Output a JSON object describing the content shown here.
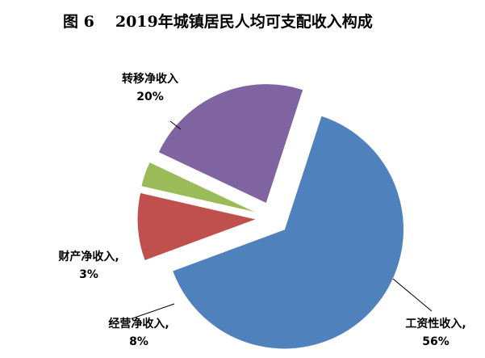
{
  "chart_data": {
    "type": "pie",
    "title_prefix": "图 6",
    "title": "2019年城镇居民人均可支配收入构成",
    "slices": [
      {
        "label": "工资性收入,",
        "pct_label": "56%",
        "value": 56,
        "color": "#4f81bd"
      },
      {
        "label": "经营净收入,",
        "pct_label": "8%",
        "value": 8,
        "color": "#c0504d"
      },
      {
        "label": "财产净收入,",
        "pct_label": "3%",
        "value": 3,
        "color": "#9bbb59"
      },
      {
        "label": "转移净收入",
        "pct_label": "20%",
        "value": 20,
        "color": "#8064a2"
      }
    ]
  }
}
